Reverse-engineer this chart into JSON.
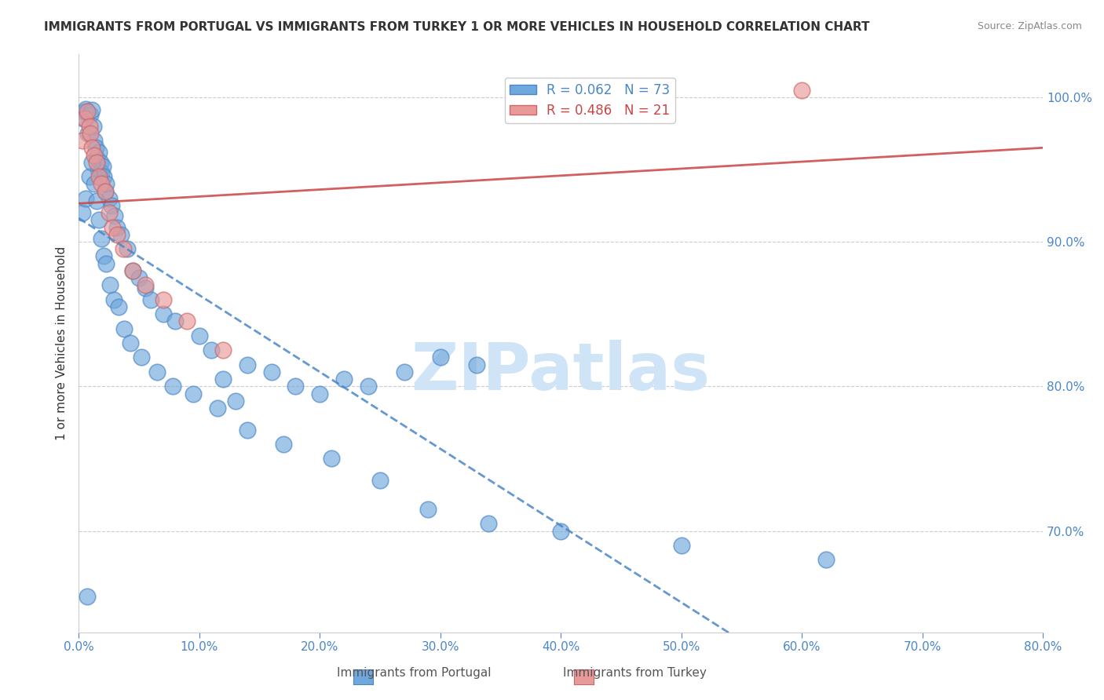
{
  "title": "IMMIGRANTS FROM PORTUGAL VS IMMIGRANTS FROM TURKEY 1 OR MORE VEHICLES IN HOUSEHOLD CORRELATION CHART",
  "source": "Source: ZipAtlas.com",
  "ylabel": "1 or more Vehicles in Household",
  "x_tick_labels": [
    "0.0%",
    "10.0%",
    "20.0%",
    "30.0%",
    "40.0%",
    "50.0%",
    "60.0%",
    "70.0%",
    "80.0%"
  ],
  "x_tick_vals": [
    0.0,
    10.0,
    20.0,
    30.0,
    40.0,
    50.0,
    60.0,
    70.0,
    80.0
  ],
  "y_tick_labels_right": [
    "100.0%",
    "90.0%",
    "80.0%",
    "70.0%"
  ],
  "y_tick_vals": [
    100.0,
    90.0,
    80.0,
    70.0
  ],
  "xlim": [
    0.0,
    80.0
  ],
  "ylim": [
    63.0,
    103.0
  ],
  "portugal_R": 0.062,
  "portugal_N": 73,
  "turkey_R": 0.486,
  "turkey_N": 21,
  "legend_entries": [
    "Immigrants from Portugal",
    "Immigrants from Turkey"
  ],
  "portugal_color": "#6fa8dc",
  "turkey_color": "#ea9999",
  "portugal_line_color": "#4a86c8",
  "turkey_line_color": "#cc4444",
  "background_color": "#ffffff",
  "watermark_text": "ZIPatlas",
  "watermark_color": "#d0e4f7",
  "portugal_x": [
    0.4,
    0.5,
    0.6,
    0.8,
    1.0,
    1.1,
    1.2,
    1.3,
    1.4,
    1.5,
    1.6,
    1.7,
    1.8,
    1.9,
    2.0,
    2.1,
    2.2,
    2.3,
    2.5,
    2.7,
    3.0,
    3.2,
    3.5,
    4.0,
    4.5,
    5.0,
    5.5,
    6.0,
    7.0,
    8.0,
    10.0,
    11.0,
    12.0,
    13.0,
    14.0,
    16.0,
    18.0,
    20.0,
    22.0,
    24.0,
    27.0,
    30.0,
    33.0,
    0.3,
    0.6,
    0.9,
    1.1,
    1.3,
    1.5,
    1.7,
    1.9,
    2.1,
    2.3,
    2.6,
    2.9,
    3.3,
    3.8,
    4.3,
    5.2,
    6.5,
    7.8,
    9.5,
    11.5,
    14.0,
    17.0,
    21.0,
    25.0,
    29.0,
    34.0,
    40.0,
    50.0,
    62.0,
    0.7
  ],
  "portugal_y": [
    98.5,
    99.0,
    99.2,
    97.5,
    98.8,
    99.1,
    98.0,
    97.0,
    96.5,
    95.8,
    95.0,
    96.2,
    95.5,
    94.8,
    95.2,
    94.5,
    93.5,
    94.0,
    93.0,
    92.5,
    91.8,
    91.0,
    90.5,
    89.5,
    88.0,
    87.5,
    86.8,
    86.0,
    85.0,
    84.5,
    83.5,
    82.5,
    80.5,
    79.0,
    81.5,
    81.0,
    80.0,
    79.5,
    80.5,
    80.0,
    81.0,
    82.0,
    81.5,
    92.0,
    93.0,
    94.5,
    95.5,
    94.0,
    92.8,
    91.5,
    90.2,
    89.0,
    88.5,
    87.0,
    86.0,
    85.5,
    84.0,
    83.0,
    82.0,
    81.0,
    80.0,
    79.5,
    78.5,
    77.0,
    76.0,
    75.0,
    73.5,
    71.5,
    70.5,
    70.0,
    69.0,
    68.0,
    65.5
  ],
  "turkey_x": [
    0.3,
    0.5,
    0.7,
    0.9,
    1.0,
    1.1,
    1.3,
    1.5,
    1.7,
    1.9,
    2.2,
    2.5,
    2.8,
    3.2,
    3.7,
    4.5,
    5.5,
    7.0,
    9.0,
    12.0,
    60.0
  ],
  "turkey_y": [
    97.0,
    98.5,
    99.0,
    98.0,
    97.5,
    96.5,
    96.0,
    95.5,
    94.5,
    94.0,
    93.5,
    92.0,
    91.0,
    90.5,
    89.5,
    88.0,
    87.0,
    86.0,
    84.5,
    82.5,
    100.5
  ]
}
